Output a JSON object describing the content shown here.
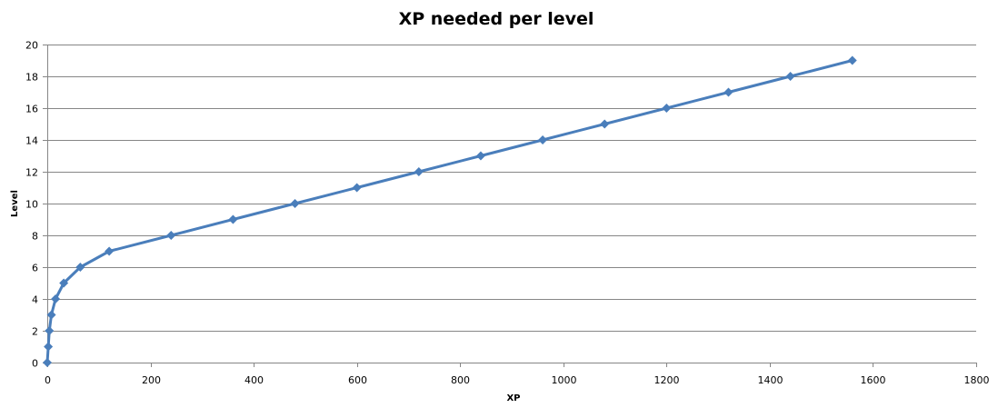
{
  "chart_data": {
    "type": "line",
    "title": "XP needed per level",
    "xlabel": "XP",
    "ylabel": "Level",
    "xlim": [
      0,
      1800
    ],
    "ylim": [
      0,
      20
    ],
    "x_ticks": [
      0,
      200,
      400,
      600,
      800,
      1000,
      1200,
      1400,
      1600,
      1800
    ],
    "y_ticks": [
      0,
      2,
      4,
      6,
      8,
      10,
      12,
      14,
      16,
      18,
      20
    ],
    "grid": {
      "horizontal": true,
      "vertical": false
    },
    "legend": "none",
    "marker": "diamond",
    "series": [
      {
        "name": "Level",
        "color": "#4a7ebb",
        "x": [
          0,
          2,
          4,
          8,
          16,
          32,
          64,
          120,
          240,
          360,
          480,
          600,
          720,
          840,
          960,
          1080,
          1200,
          1320,
          1440,
          1560
        ],
        "y": [
          0,
          1,
          2,
          3,
          4,
          5,
          6,
          7,
          8,
          9,
          10,
          11,
          12,
          13,
          14,
          15,
          16,
          17,
          18,
          19
        ]
      }
    ]
  },
  "colors": {
    "series": "#4a7ebb",
    "grid": "#868686",
    "text": "#000000"
  }
}
